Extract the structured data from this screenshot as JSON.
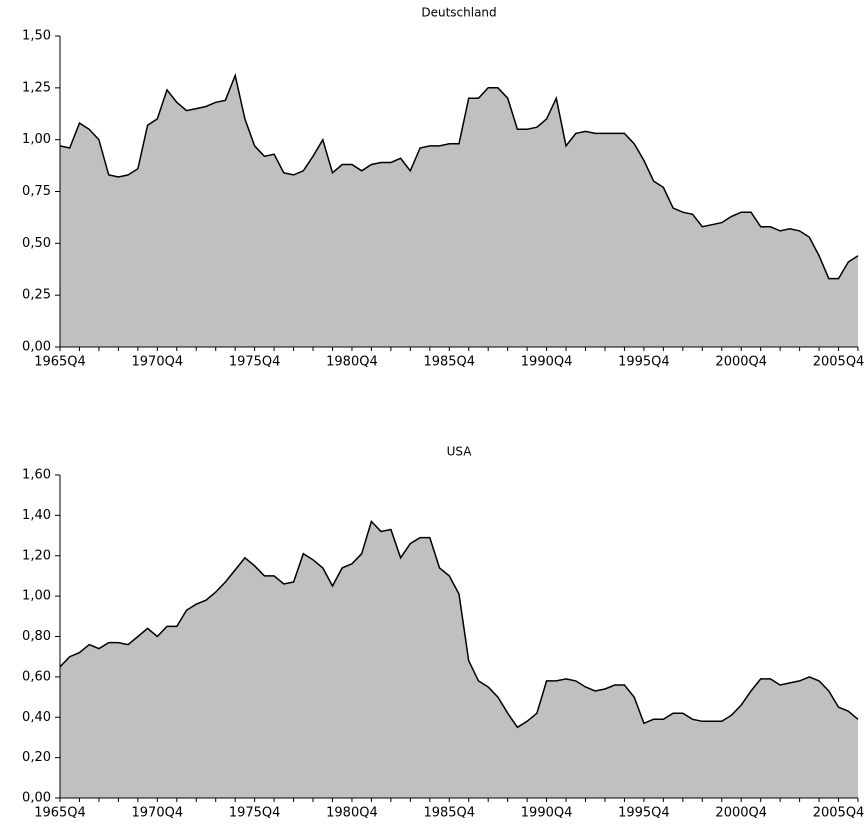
{
  "chart_data": [
    {
      "type": "area",
      "title": "Deutschland",
      "categories": [
        "1965Q4",
        null,
        null,
        null,
        null,
        null,
        null,
        null,
        null,
        null,
        "1970Q4",
        null,
        null,
        null,
        null,
        null,
        null,
        null,
        null,
        null,
        "1975Q4",
        null,
        null,
        null,
        null,
        null,
        null,
        null,
        null,
        null,
        "1980Q4",
        null,
        null,
        null,
        null,
        null,
        null,
        null,
        null,
        null,
        "1985Q4",
        null,
        null,
        null,
        null,
        null,
        null,
        null,
        null,
        null,
        "1990Q4",
        null,
        null,
        null,
        null,
        null,
        null,
        null,
        null,
        null,
        "1995Q4",
        null,
        null,
        null,
        null,
        null,
        null,
        null,
        null,
        null,
        "2000Q4",
        null,
        null,
        null,
        null,
        null,
        null,
        null,
        null,
        null,
        "2005Q4",
        null,
        null
      ],
      "values": [
        0.97,
        0.96,
        1.08,
        1.05,
        1.0,
        0.83,
        0.82,
        0.83,
        0.86,
        1.07,
        1.1,
        1.24,
        1.18,
        1.14,
        1.15,
        1.16,
        1.18,
        1.19,
        1.31,
        1.1,
        0.97,
        0.92,
        0.93,
        0.84,
        0.83,
        0.85,
        0.92,
        1.0,
        0.84,
        0.88,
        0.88,
        0.85,
        0.88,
        0.89,
        0.89,
        0.91,
        0.85,
        0.96,
        0.97,
        0.97,
        0.98,
        0.98,
        1.2,
        1.2,
        1.25,
        1.25,
        1.2,
        1.05,
        1.05,
        1.06,
        1.1,
        1.2,
        0.97,
        1.03,
        1.04,
        1.03,
        1.03,
        1.03,
        1.03,
        0.98,
        0.9,
        0.8,
        0.77,
        0.67,
        0.65,
        0.64,
        0.58,
        0.59,
        0.6,
        0.63,
        0.65,
        0.65,
        0.58,
        0.58,
        0.56,
        0.57,
        0.56,
        0.53,
        0.44,
        0.33,
        0.33,
        0.41,
        0.44
      ],
      "color": "#c0c0c0",
      "ylim": [
        0,
        1.5
      ],
      "yticks": [
        {
          "value": 0,
          "label": "0,00"
        },
        {
          "value": 0.25,
          "label": "0,25"
        },
        {
          "value": 0.5,
          "label": "0,50"
        },
        {
          "value": 0.75,
          "label": "0,75"
        },
        {
          "value": 1.0,
          "label": "1,00"
        },
        {
          "value": 1.25,
          "label": "1,25"
        },
        {
          "value": 1.5,
          "label": "1,50"
        }
      ]
    },
    {
      "type": "area",
      "title": "USA",
      "categories": [
        "1965Q4",
        null,
        null,
        null,
        null,
        null,
        null,
        null,
        null,
        null,
        "1970Q4",
        null,
        null,
        null,
        null,
        null,
        null,
        null,
        null,
        null,
        "1975Q4",
        null,
        null,
        null,
        null,
        null,
        null,
        null,
        null,
        null,
        "1980Q4",
        null,
        null,
        null,
        null,
        null,
        null,
        null,
        null,
        null,
        "1985Q4",
        null,
        null,
        null,
        null,
        null,
        null,
        null,
        null,
        null,
        "1990Q4",
        null,
        null,
        null,
        null,
        null,
        null,
        null,
        null,
        null,
        "1995Q4",
        null,
        null,
        null,
        null,
        null,
        null,
        null,
        null,
        null,
        "2000Q4",
        null,
        null,
        null,
        null,
        null,
        null,
        null,
        null,
        null,
        "2005Q4",
        null,
        null
      ],
      "values": [
        0.65,
        0.7,
        0.72,
        0.76,
        0.74,
        0.77,
        0.77,
        0.76,
        0.8,
        0.84,
        0.8,
        0.85,
        0.85,
        0.93,
        0.96,
        0.98,
        1.02,
        1.07,
        1.13,
        1.19,
        1.15,
        1.1,
        1.1,
        1.06,
        1.07,
        1.21,
        1.18,
        1.14,
        1.05,
        1.14,
        1.16,
        1.21,
        1.37,
        1.32,
        1.33,
        1.19,
        1.26,
        1.29,
        1.29,
        1.14,
        1.1,
        1.01,
        0.68,
        0.58,
        0.55,
        0.5,
        0.42,
        0.35,
        0.38,
        0.42,
        0.58,
        0.58,
        0.59,
        0.58,
        0.55,
        0.53,
        0.54,
        0.56,
        0.56,
        0.5,
        0.37,
        0.39,
        0.39,
        0.42,
        0.42,
        0.39,
        0.38,
        0.38,
        0.38,
        0.41,
        0.46,
        0.53,
        0.59,
        0.59,
        0.56,
        0.57,
        0.58,
        0.6,
        0.58,
        0.53,
        0.45,
        0.43,
        0.39
      ],
      "color": "#c0c0c0",
      "ylim": [
        0,
        1.6
      ],
      "yticks": [
        {
          "value": 0,
          "label": "0,00"
        },
        {
          "value": 0.2,
          "label": "0,20"
        },
        {
          "value": 0.4,
          "label": "0,40"
        },
        {
          "value": 0.6,
          "label": "0,60"
        },
        {
          "value": 0.8,
          "label": "0,80"
        },
        {
          "value": 1.0,
          "label": "1,00"
        },
        {
          "value": 1.2,
          "label": "1,20"
        },
        {
          "value": 1.4,
          "label": "1,40"
        },
        {
          "value": 1.6,
          "label": "1,60"
        }
      ]
    }
  ]
}
